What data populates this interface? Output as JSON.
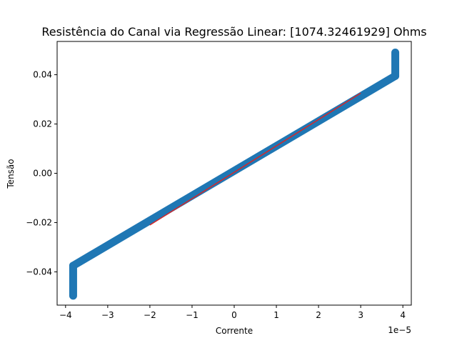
{
  "chart_data": {
    "type": "scatter",
    "title": "Resistência do Canal via Regressão Linear: [1074.32461929] Ohms",
    "xlabel": "Corrente",
    "ylabel": "Tensão",
    "x_offset_label": "1e−5",
    "x_scale": 1e-05,
    "xlim": [
      -4.2,
      4.2
    ],
    "ylim": [
      -0.0535,
      0.0535
    ],
    "x_ticks": [
      -4,
      -3,
      -2,
      -1,
      0,
      1,
      2,
      3,
      4
    ],
    "x_tick_labels": [
      "−4",
      "−3",
      "−2",
      "−1",
      "0",
      "1",
      "2",
      "3",
      "4"
    ],
    "y_ticks": [
      -0.04,
      -0.02,
      0.0,
      0.02,
      0.04
    ],
    "y_tick_labels": [
      "−0.04",
      "−0.02",
      "0.00",
      "0.02",
      "0.04"
    ],
    "grid": false,
    "series": [
      {
        "kind": "scatter",
        "color": "#1f77b4",
        "segments": [
          {
            "x": [
              -3.82,
              -3.82
            ],
            "y": [
              -0.0497,
              -0.0375
            ]
          },
          {
            "x": [
              -3.82,
              3.82
            ],
            "y": [
              -0.0375,
              0.0395
            ]
          },
          {
            "x": [
              3.82,
              3.82
            ],
            "y": [
              0.0395,
              0.049
            ]
          }
        ]
      },
      {
        "kind": "fit-line",
        "color": "#d62728",
        "x": [
          -2.0,
          3.0
        ],
        "y": [
          -0.021,
          0.0325
        ]
      }
    ]
  }
}
